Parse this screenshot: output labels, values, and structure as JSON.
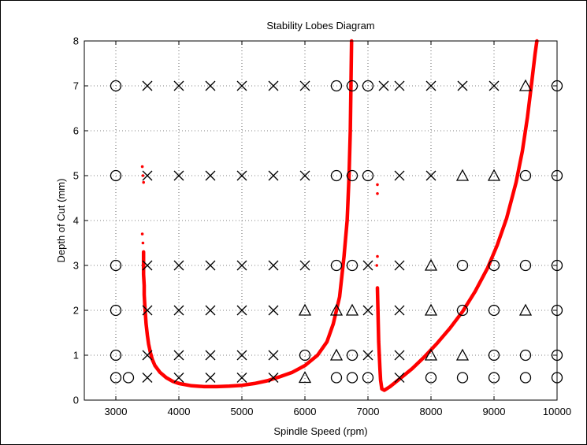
{
  "chart_data": {
    "type": "scatter",
    "title": "Stability Lobes Diagram",
    "xlabel": "Spindle Speed (rpm)",
    "ylabel": "Depth of Cut (mm)",
    "xlim": [
      2500,
      10000
    ],
    "ylim": [
      0,
      8
    ],
    "xticks": [
      3000,
      4000,
      5000,
      6000,
      7000,
      8000,
      9000,
      10000
    ],
    "yticks": [
      0,
      1,
      2,
      3,
      4,
      5,
      6,
      7,
      8
    ],
    "grid": true,
    "stability_lobes": [
      {
        "color": "#ff0000",
        "points": [
          [
            3420,
            5.2
          ],
          [
            3430,
            5.0
          ],
          [
            3440,
            4.85
          ],
          [
            3420,
            3.7
          ],
          [
            3430,
            3.5
          ],
          [
            3440,
            3.3
          ],
          [
            3440,
            2.8
          ],
          [
            3450,
            2.55
          ],
          [
            3450,
            2.35
          ],
          [
            3460,
            2.1
          ],
          [
            3470,
            1.9
          ],
          [
            3480,
            1.7
          ],
          [
            3500,
            1.45
          ],
          [
            3520,
            1.25
          ],
          [
            3550,
            1.05
          ],
          [
            3580,
            0.9
          ],
          [
            3620,
            0.77
          ],
          [
            3700,
            0.62
          ],
          [
            3800,
            0.5
          ],
          [
            3900,
            0.42
          ],
          [
            4000,
            0.37
          ],
          [
            4200,
            0.32
          ],
          [
            4400,
            0.3
          ],
          [
            4600,
            0.3
          ],
          [
            4800,
            0.31
          ],
          [
            5000,
            0.33
          ],
          [
            5200,
            0.37
          ],
          [
            5400,
            0.43
          ],
          [
            5600,
            0.52
          ],
          [
            5800,
            0.62
          ],
          [
            6000,
            0.77
          ],
          [
            6200,
            1.0
          ],
          [
            6350,
            1.3
          ],
          [
            6450,
            1.7
          ],
          [
            6550,
            2.3
          ],
          [
            6620,
            3.2
          ],
          [
            6670,
            4.0
          ],
          [
            6700,
            5.0
          ],
          [
            6720,
            6.0
          ],
          [
            6730,
            7.0
          ],
          [
            6740,
            8.0
          ]
        ]
      },
      {
        "color": "#ff0000",
        "points": [
          [
            7150,
            4.8
          ],
          [
            7150,
            4.6
          ],
          [
            7150,
            3.2
          ],
          [
            7140,
            3.0
          ],
          [
            7150,
            2.5
          ],
          [
            7155,
            2.2
          ],
          [
            7160,
            1.9
          ],
          [
            7165,
            1.6
          ],
          [
            7170,
            1.3
          ],
          [
            7180,
            1.0
          ],
          [
            7190,
            0.7
          ],
          [
            7200,
            0.45
          ],
          [
            7220,
            0.25
          ],
          [
            7260,
            0.22
          ],
          [
            7350,
            0.3
          ],
          [
            7500,
            0.47
          ],
          [
            7700,
            0.7
          ],
          [
            7900,
            0.97
          ],
          [
            8100,
            1.27
          ],
          [
            8300,
            1.6
          ],
          [
            8500,
            1.97
          ],
          [
            8700,
            2.42
          ],
          [
            8900,
            2.95
          ],
          [
            9050,
            3.45
          ],
          [
            9200,
            4.05
          ],
          [
            9350,
            4.85
          ],
          [
            9450,
            5.55
          ],
          [
            9530,
            6.3
          ],
          [
            9600,
            7.1
          ],
          [
            9650,
            7.7
          ],
          [
            9680,
            8.0
          ]
        ]
      }
    ],
    "test_points": [
      {
        "x": 3000,
        "y": 7,
        "m": "o"
      },
      {
        "x": 3500,
        "y": 7,
        "m": "x"
      },
      {
        "x": 4000,
        "y": 7,
        "m": "x"
      },
      {
        "x": 4500,
        "y": 7,
        "m": "x"
      },
      {
        "x": 5000,
        "y": 7,
        "m": "x"
      },
      {
        "x": 5500,
        "y": 7,
        "m": "x"
      },
      {
        "x": 6000,
        "y": 7,
        "m": "x"
      },
      {
        "x": 6500,
        "y": 7,
        "m": "o"
      },
      {
        "x": 6750,
        "y": 7,
        "m": "o"
      },
      {
        "x": 7000,
        "y": 7,
        "m": "o"
      },
      {
        "x": 7250,
        "y": 7,
        "m": "x"
      },
      {
        "x": 7500,
        "y": 7,
        "m": "x"
      },
      {
        "x": 8000,
        "y": 7,
        "m": "x"
      },
      {
        "x": 8500,
        "y": 7,
        "m": "x"
      },
      {
        "x": 9000,
        "y": 7,
        "m": "x"
      },
      {
        "x": 9500,
        "y": 7,
        "m": "t"
      },
      {
        "x": 10000,
        "y": 7,
        "m": "o"
      },
      {
        "x": 3000,
        "y": 5,
        "m": "o"
      },
      {
        "x": 3500,
        "y": 5,
        "m": "x"
      },
      {
        "x": 4000,
        "y": 5,
        "m": "x"
      },
      {
        "x": 4500,
        "y": 5,
        "m": "x"
      },
      {
        "x": 5000,
        "y": 5,
        "m": "x"
      },
      {
        "x": 5500,
        "y": 5,
        "m": "x"
      },
      {
        "x": 6000,
        "y": 5,
        "m": "x"
      },
      {
        "x": 6500,
        "y": 5,
        "m": "o"
      },
      {
        "x": 6750,
        "y": 5,
        "m": "o"
      },
      {
        "x": 7000,
        "y": 5,
        "m": "o"
      },
      {
        "x": 7500,
        "y": 5,
        "m": "x"
      },
      {
        "x": 8000,
        "y": 5,
        "m": "x"
      },
      {
        "x": 8500,
        "y": 5,
        "m": "t"
      },
      {
        "x": 9000,
        "y": 5,
        "m": "t"
      },
      {
        "x": 9500,
        "y": 5,
        "m": "o"
      },
      {
        "x": 10000,
        "y": 5,
        "m": "o"
      },
      {
        "x": 3000,
        "y": 3,
        "m": "o"
      },
      {
        "x": 3500,
        "y": 3,
        "m": "x"
      },
      {
        "x": 4000,
        "y": 3,
        "m": "x"
      },
      {
        "x": 4500,
        "y": 3,
        "m": "x"
      },
      {
        "x": 5000,
        "y": 3,
        "m": "x"
      },
      {
        "x": 5500,
        "y": 3,
        "m": "x"
      },
      {
        "x": 6000,
        "y": 3,
        "m": "x"
      },
      {
        "x": 6500,
        "y": 3,
        "m": "o"
      },
      {
        "x": 6750,
        "y": 3,
        "m": "o"
      },
      {
        "x": 7000,
        "y": 3,
        "m": "x"
      },
      {
        "x": 7500,
        "y": 3,
        "m": "x"
      },
      {
        "x": 8000,
        "y": 3,
        "m": "t"
      },
      {
        "x": 8500,
        "y": 3,
        "m": "o"
      },
      {
        "x": 9000,
        "y": 3,
        "m": "o"
      },
      {
        "x": 9500,
        "y": 3,
        "m": "o"
      },
      {
        "x": 10000,
        "y": 3,
        "m": "o"
      },
      {
        "x": 3000,
        "y": 2,
        "m": "o"
      },
      {
        "x": 3500,
        "y": 2,
        "m": "x"
      },
      {
        "x": 4000,
        "y": 2,
        "m": "x"
      },
      {
        "x": 4500,
        "y": 2,
        "m": "x"
      },
      {
        "x": 5000,
        "y": 2,
        "m": "x"
      },
      {
        "x": 5500,
        "y": 2,
        "m": "x"
      },
      {
        "x": 6000,
        "y": 2,
        "m": "t"
      },
      {
        "x": 6500,
        "y": 2,
        "m": "t"
      },
      {
        "x": 6750,
        "y": 2,
        "m": "t"
      },
      {
        "x": 7000,
        "y": 2,
        "m": "x"
      },
      {
        "x": 7500,
        "y": 2,
        "m": "x"
      },
      {
        "x": 8000,
        "y": 2,
        "m": "t"
      },
      {
        "x": 8500,
        "y": 2,
        "m": "o"
      },
      {
        "x": 9000,
        "y": 2,
        "m": "o"
      },
      {
        "x": 9500,
        "y": 2,
        "m": "t"
      },
      {
        "x": 10000,
        "y": 2,
        "m": "o"
      },
      {
        "x": 3000,
        "y": 1,
        "m": "o"
      },
      {
        "x": 3500,
        "y": 1,
        "m": "x"
      },
      {
        "x": 4000,
        "y": 1,
        "m": "x"
      },
      {
        "x": 4500,
        "y": 1,
        "m": "x"
      },
      {
        "x": 5000,
        "y": 1,
        "m": "x"
      },
      {
        "x": 5500,
        "y": 1,
        "m": "x"
      },
      {
        "x": 6000,
        "y": 1,
        "m": "o"
      },
      {
        "x": 6500,
        "y": 1,
        "m": "t"
      },
      {
        "x": 6750,
        "y": 1,
        "m": "o"
      },
      {
        "x": 7000,
        "y": 1,
        "m": "x"
      },
      {
        "x": 7500,
        "y": 1,
        "m": "x"
      },
      {
        "x": 8000,
        "y": 1,
        "m": "t"
      },
      {
        "x": 8500,
        "y": 1,
        "m": "t"
      },
      {
        "x": 9000,
        "y": 1,
        "m": "o"
      },
      {
        "x": 9500,
        "y": 1,
        "m": "o"
      },
      {
        "x": 10000,
        "y": 1,
        "m": "o"
      },
      {
        "x": 3000,
        "y": 0.5,
        "m": "o"
      },
      {
        "x": 3200,
        "y": 0.5,
        "m": "o"
      },
      {
        "x": 3500,
        "y": 0.5,
        "m": "x"
      },
      {
        "x": 4000,
        "y": 0.5,
        "m": "x"
      },
      {
        "x": 4500,
        "y": 0.5,
        "m": "x"
      },
      {
        "x": 5000,
        "y": 0.5,
        "m": "x"
      },
      {
        "x": 5500,
        "y": 0.5,
        "m": "x"
      },
      {
        "x": 6000,
        "y": 0.5,
        "m": "t"
      },
      {
        "x": 6500,
        "y": 0.5,
        "m": "o"
      },
      {
        "x": 6750,
        "y": 0.5,
        "m": "o"
      },
      {
        "x": 7000,
        "y": 0.5,
        "m": "o"
      },
      {
        "x": 7500,
        "y": 0.5,
        "m": "x"
      },
      {
        "x": 8000,
        "y": 0.5,
        "m": "o"
      },
      {
        "x": 8500,
        "y": 0.5,
        "m": "o"
      },
      {
        "x": 9000,
        "y": 0.5,
        "m": "o"
      },
      {
        "x": 9500,
        "y": 0.5,
        "m": "o"
      },
      {
        "x": 10000,
        "y": 0.5,
        "m": "o"
      }
    ],
    "marker_legend": {
      "o": "circle",
      "x": "cross",
      "t": "triangle"
    }
  }
}
